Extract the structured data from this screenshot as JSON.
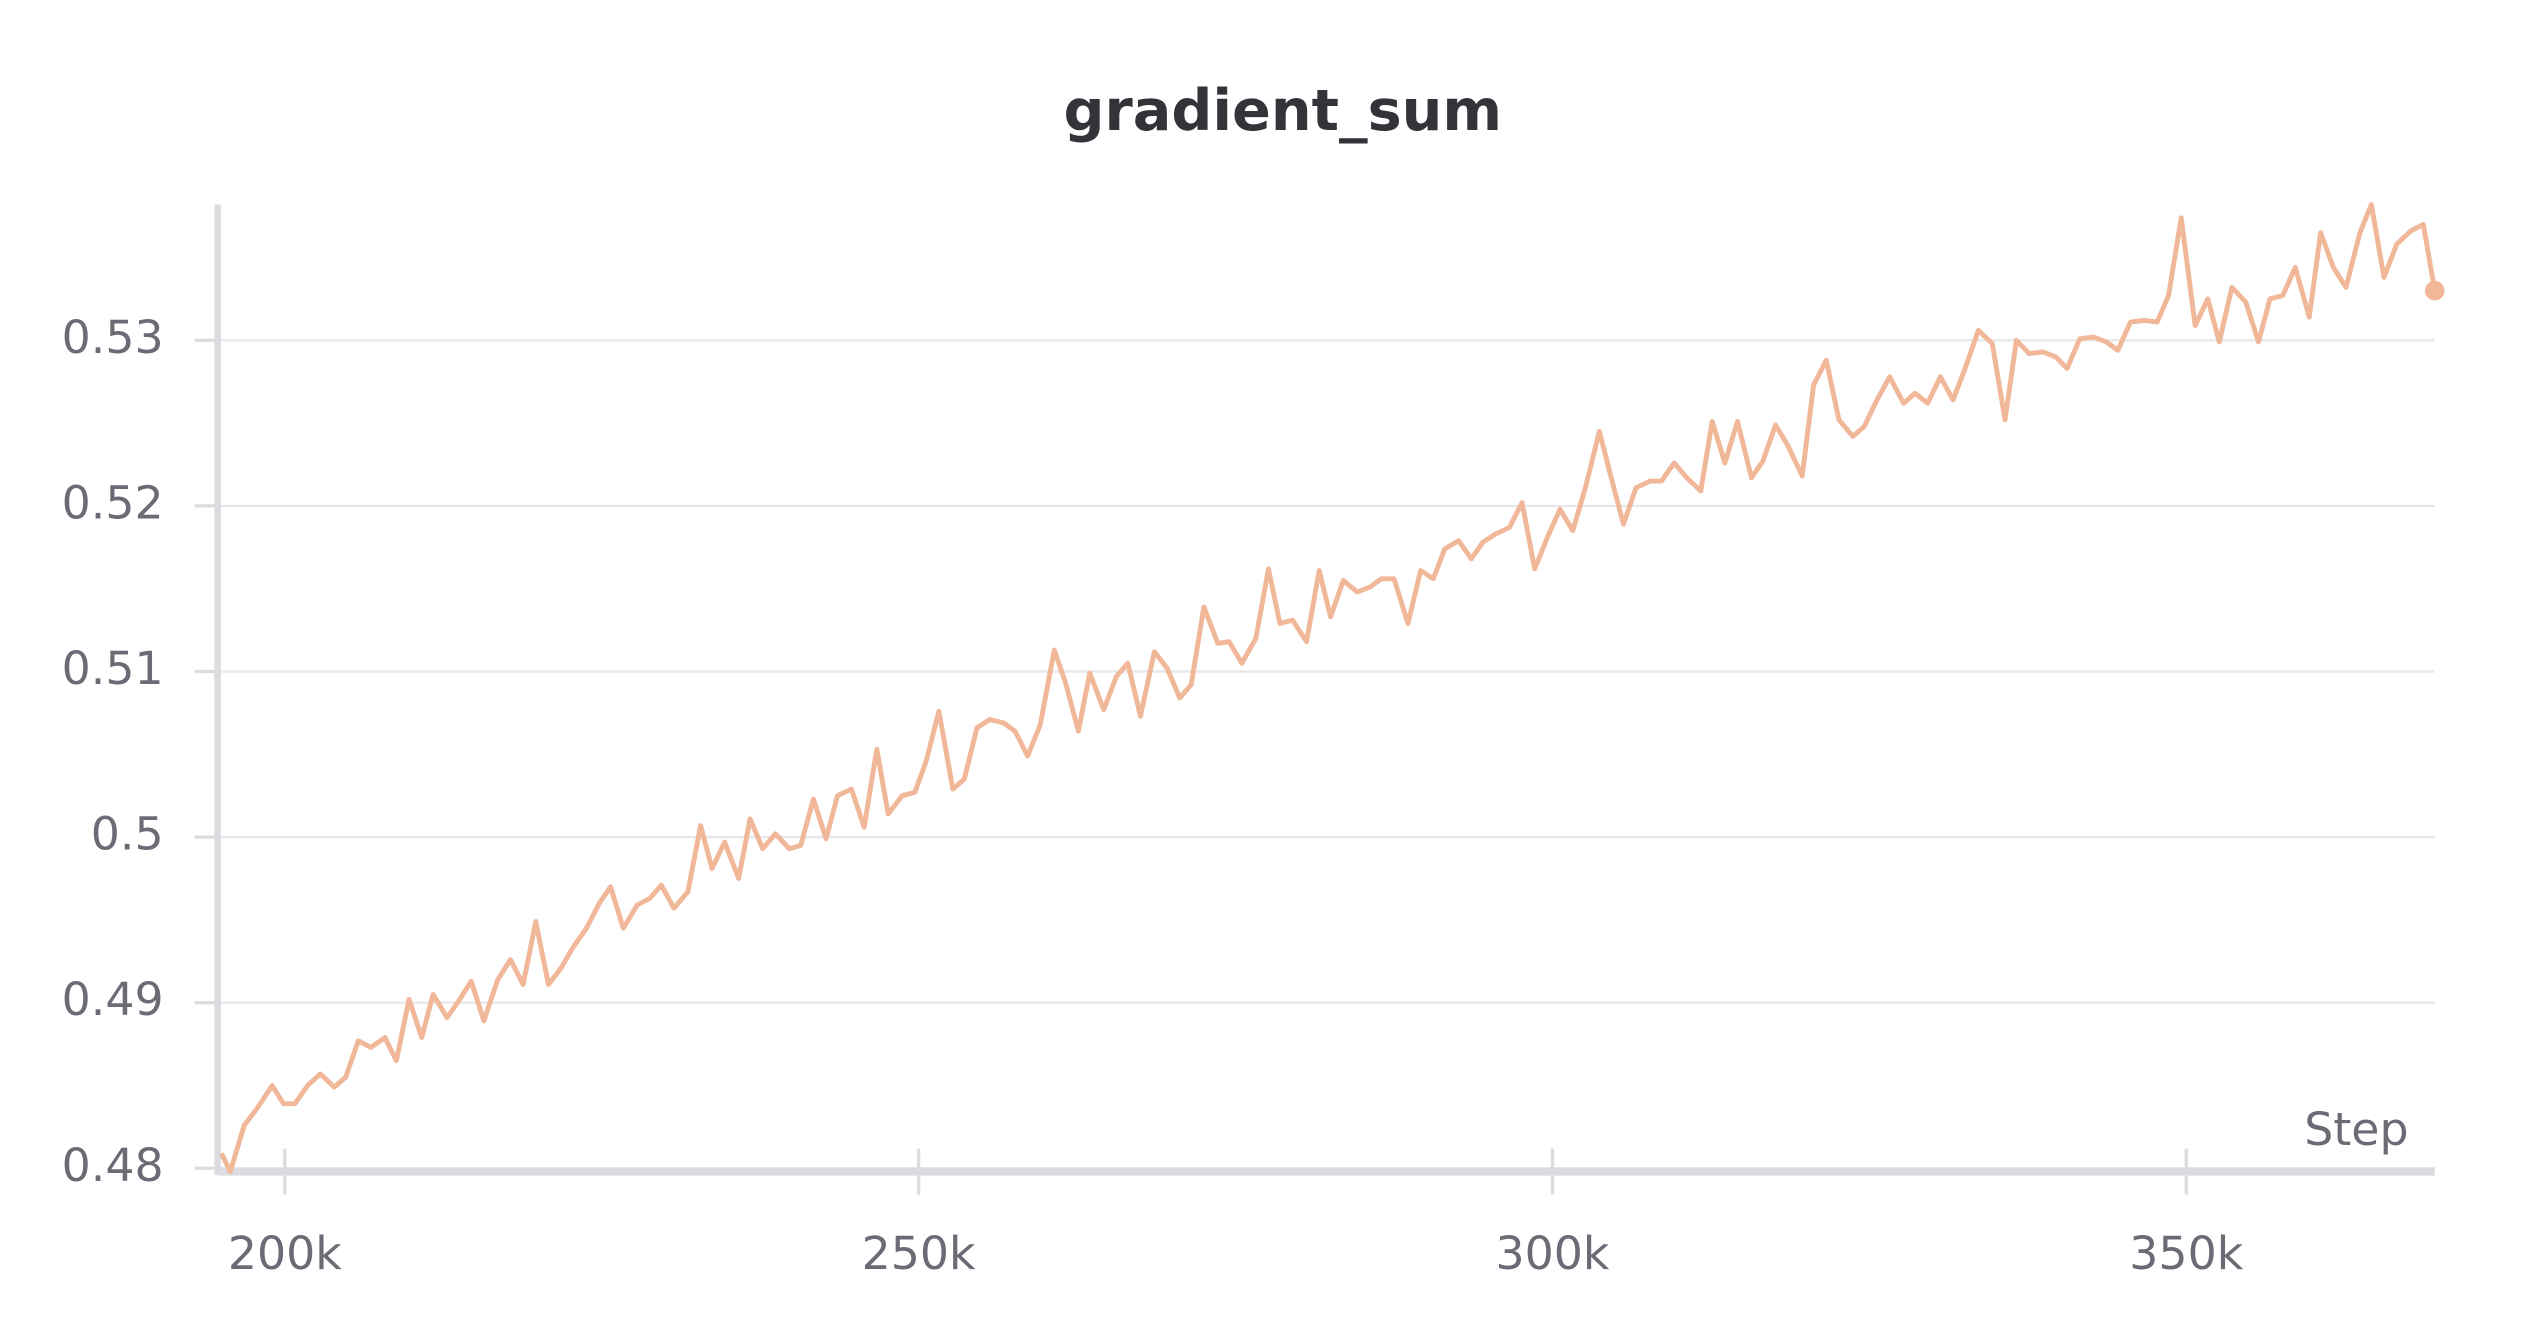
{
  "chart_data": {
    "type": "line",
    "title": "gradient_sum",
    "x_label": "Step",
    "color": "#f0b898",
    "xlim": [
      194700,
      369600
    ],
    "xticks": [
      {
        "value": 200000,
        "label": "200k"
      },
      {
        "value": 250000,
        "label": "250k"
      },
      {
        "value": 300000,
        "label": "300k"
      },
      {
        "value": 350000,
        "label": "350k"
      }
    ],
    "ylim": [
      0.48,
      0.5382
    ],
    "yticks": [
      0.48,
      0.49,
      0.5,
      0.51,
      0.52,
      0.53
    ],
    "grid": true,
    "x": [
      195000,
      195700,
      196800,
      197800,
      199000,
      199900,
      200800,
      201800,
      202800,
      203900,
      204800,
      205800,
      206800,
      207900,
      208800,
      209800,
      210800,
      211700,
      212800,
      213800,
      214700,
      215700,
      216800,
      217800,
      218800,
      219800,
      220800,
      221800,
      222700,
      223800,
      224800,
      225700,
      226700,
      227800,
      228800,
      229700,
      230700,
      231800,
      232800,
      233700,
      234700,
      235800,
      236700,
      237700,
      238700,
      239800,
      240700,
      241700,
      242700,
      243600,
      244700,
      245700,
      246700,
      247600,
      248700,
      249700,
      250600,
      251600,
      252700,
      253600,
      254600,
      255600,
      256700,
      257600,
      258600,
      259600,
      260700,
      261600,
      262600,
      263500,
      264600,
      265600,
      266500,
      267500,
      268600,
      269600,
      270600,
      271500,
      272500,
      273600,
      274500,
      275500,
      276600,
      277600,
      278500,
      279500,
      280600,
      281600,
      282500,
      283500,
      284600,
      285600,
      286500,
      287500,
      288600,
      289600,
      290600,
      291500,
      292600,
      293600,
      294500,
      295500,
      296600,
      297600,
      298600,
      299600,
      300600,
      301600,
      302600,
      303700,
      304600,
      305600,
      306600,
      307700,
      308600,
      309600,
      310600,
      311700,
      312600,
      313600,
      314600,
      315700,
      316600,
      317600,
      318600,
      319700,
      320600,
      321600,
      322600,
      323700,
      324600,
      325600,
      326600,
      327700,
      328600,
      329600,
      330600,
      331600,
      332600,
      333600,
      334700,
      335700,
      336600,
      337600,
      338700,
      339700,
      340600,
      341600,
      342700,
      343700,
      344600,
      345600,
      346700,
      347700,
      348600,
      349600,
      350700,
      351700,
      352600,
      353600,
      354700,
      355700,
      356600,
      357600,
      358600,
      359700,
      360600,
      361600,
      362600,
      363700,
      364600,
      365600,
      366600,
      367700,
      368700,
      369600
    ],
    "values": [
      0.4809,
      0.4798,
      0.4826,
      0.4836,
      0.485,
      0.4839,
      0.4839,
      0.485,
      0.4857,
      0.4849,
      0.4855,
      0.4877,
      0.4873,
      0.4879,
      0.4865,
      0.4902,
      0.4879,
      0.4905,
      0.4891,
      0.4902,
      0.4913,
      0.4889,
      0.4914,
      0.4926,
      0.4911,
      0.4949,
      0.4911,
      0.4921,
      0.4933,
      0.4945,
      0.496,
      0.497,
      0.4945,
      0.4959,
      0.4963,
      0.4971,
      0.4957,
      0.4967,
      0.5007,
      0.4981,
      0.4997,
      0.4975,
      0.5011,
      0.4993,
      0.5002,
      0.4993,
      0.4995,
      0.5023,
      0.4999,
      0.5025,
      0.5029,
      0.5006,
      0.5053,
      0.5014,
      0.5025,
      0.5027,
      0.5046,
      0.5076,
      0.5029,
      0.5035,
      0.5066,
      0.5071,
      0.5069,
      0.5064,
      0.5049,
      0.5068,
      0.5113,
      0.5093,
      0.5064,
      0.5099,
      0.5077,
      0.5097,
      0.5105,
      0.5073,
      0.5112,
      0.5102,
      0.5084,
      0.5092,
      0.5139,
      0.5117,
      0.5118,
      0.5105,
      0.512,
      0.5162,
      0.5129,
      0.5131,
      0.5118,
      0.5161,
      0.5133,
      0.5155,
      0.5148,
      0.5151,
      0.5156,
      0.5156,
      0.5129,
      0.5161,
      0.5156,
      0.5174,
      0.5179,
      0.5168,
      0.5178,
      0.5183,
      0.5187,
      0.5202,
      0.5162,
      0.5181,
      0.5198,
      0.5185,
      0.5211,
      0.5245,
      0.5218,
      0.5189,
      0.5211,
      0.5215,
      0.5215,
      0.5226,
      0.5217,
      0.5209,
      0.5251,
      0.5226,
      0.5251,
      0.5217,
      0.5227,
      0.5249,
      0.5236,
      0.5218,
      0.5273,
      0.5288,
      0.5252,
      0.5242,
      0.5248,
      0.5264,
      0.5278,
      0.5262,
      0.5268,
      0.5262,
      0.5278,
      0.5264,
      0.5284,
      0.5306,
      0.5298,
      0.5252,
      0.53,
      0.5292,
      0.5293,
      0.529,
      0.5283,
      0.5301,
      0.5302,
      0.5299,
      0.5294,
      0.5311,
      0.5312,
      0.5311,
      0.5327,
      0.5374,
      0.5309,
      0.5325,
      0.5299,
      0.5332,
      0.5323,
      0.5299,
      0.5325,
      0.5327,
      0.5344,
      0.5314,
      0.5365,
      0.5344,
      0.5332,
      0.5365,
      0.5382,
      0.5338,
      0.5358,
      0.5366,
      0.537,
      0.533
    ]
  }
}
